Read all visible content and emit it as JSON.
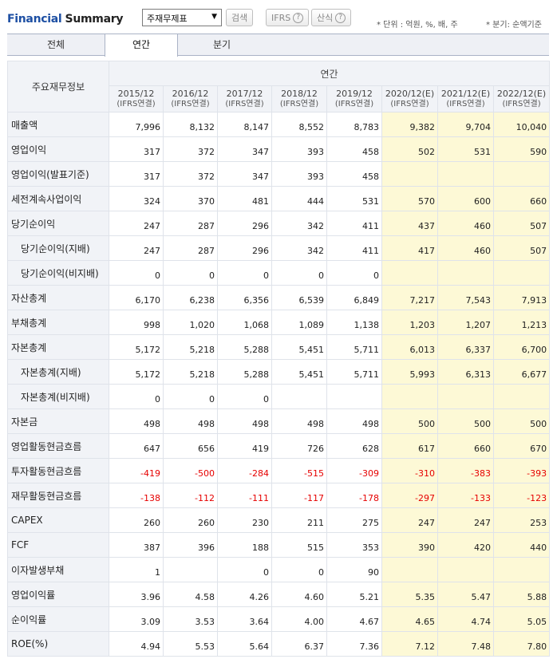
{
  "header": {
    "brand_part1": "Financial",
    "brand_part2": "Summary",
    "select_value": "주재무제표",
    "search_button": "검색",
    "ifrs_button": "IFRS",
    "formula_button": "산식",
    "help_glyph": "?",
    "unit_note": "* 단위 : 억원, %, 배, 주",
    "quarter_note": "* 분기: 순액기준"
  },
  "tabs": [
    "전체",
    "연간",
    "분기"
  ],
  "table": {
    "label_header": "주요재무정보",
    "period_header": "연간",
    "columns": [
      {
        "year": "2015/12",
        "basis": "(IFRS연결)",
        "estimate": false
      },
      {
        "year": "2016/12",
        "basis": "(IFRS연결)",
        "estimate": false
      },
      {
        "year": "2017/12",
        "basis": "(IFRS연결)",
        "estimate": false
      },
      {
        "year": "2018/12",
        "basis": "(IFRS연결)",
        "estimate": false
      },
      {
        "year": "2019/12",
        "basis": "(IFRS연결)",
        "estimate": false
      },
      {
        "year": "2020/12(E)",
        "basis": "(IFRS연결)",
        "estimate": true
      },
      {
        "year": "2021/12(E)",
        "basis": "(IFRS연결)",
        "estimate": true
      },
      {
        "year": "2022/12(E)",
        "basis": "(IFRS연결)",
        "estimate": true
      }
    ],
    "rows": [
      {
        "label": "매출액",
        "indent": false,
        "values": [
          "7,996",
          "8,132",
          "8,147",
          "8,552",
          "8,783",
          "9,382",
          "9,704",
          "10,040"
        ]
      },
      {
        "label": "영업이익",
        "indent": false,
        "values": [
          "317",
          "372",
          "347",
          "393",
          "458",
          "502",
          "531",
          "590"
        ]
      },
      {
        "label": "영업이익(발표기준)",
        "indent": false,
        "values": [
          "317",
          "372",
          "347",
          "393",
          "458",
          "",
          "",
          ""
        ]
      },
      {
        "label": "세전계속사업이익",
        "indent": false,
        "values": [
          "324",
          "370",
          "481",
          "444",
          "531",
          "570",
          "600",
          "660"
        ]
      },
      {
        "label": "당기순이익",
        "indent": false,
        "values": [
          "247",
          "287",
          "296",
          "342",
          "411",
          "437",
          "460",
          "507"
        ]
      },
      {
        "label": "당기순이익(지배)",
        "indent": true,
        "values": [
          "247",
          "287",
          "296",
          "342",
          "411",
          "417",
          "460",
          "507"
        ]
      },
      {
        "label": "당기순이익(비지배)",
        "indent": true,
        "values": [
          "0",
          "0",
          "0",
          "0",
          "0",
          "",
          "",
          ""
        ]
      },
      {
        "label": "자산총계",
        "indent": false,
        "values": [
          "6,170",
          "6,238",
          "6,356",
          "6,539",
          "6,849",
          "7,217",
          "7,543",
          "7,913"
        ]
      },
      {
        "label": "부채총계",
        "indent": false,
        "values": [
          "998",
          "1,020",
          "1,068",
          "1,089",
          "1,138",
          "1,203",
          "1,207",
          "1,213"
        ]
      },
      {
        "label": "자본총계",
        "indent": false,
        "values": [
          "5,172",
          "5,218",
          "5,288",
          "5,451",
          "5,711",
          "6,013",
          "6,337",
          "6,700"
        ]
      },
      {
        "label": "자본총계(지배)",
        "indent": true,
        "values": [
          "5,172",
          "5,218",
          "5,288",
          "5,451",
          "5,711",
          "5,993",
          "6,313",
          "6,677"
        ]
      },
      {
        "label": "자본총계(비지배)",
        "indent": true,
        "values": [
          "0",
          "0",
          "0",
          "",
          "",
          "",
          "",
          ""
        ]
      },
      {
        "label": "자본금",
        "indent": false,
        "values": [
          "498",
          "498",
          "498",
          "498",
          "498",
          "500",
          "500",
          "500"
        ]
      },
      {
        "label": "영업활동현금흐름",
        "indent": false,
        "values": [
          "647",
          "656",
          "419",
          "726",
          "628",
          "617",
          "660",
          "670"
        ]
      },
      {
        "label": "투자활동현금흐름",
        "indent": false,
        "values": [
          "-419",
          "-500",
          "-284",
          "-515",
          "-309",
          "-310",
          "-383",
          "-393"
        ]
      },
      {
        "label": "재무활동현금흐름",
        "indent": false,
        "values": [
          "-138",
          "-112",
          "-111",
          "-117",
          "-178",
          "-297",
          "-133",
          "-123"
        ]
      },
      {
        "label": "CAPEX",
        "indent": false,
        "values": [
          "260",
          "260",
          "230",
          "211",
          "275",
          "247",
          "247",
          "253"
        ]
      },
      {
        "label": "FCF",
        "indent": false,
        "values": [
          "387",
          "396",
          "188",
          "515",
          "353",
          "390",
          "420",
          "440"
        ]
      },
      {
        "label": "이자발생부채",
        "indent": false,
        "values": [
          "1",
          "",
          "0",
          "0",
          "90",
          "",
          "",
          ""
        ]
      },
      {
        "label": "영업이익률",
        "indent": false,
        "values": [
          "3.96",
          "4.58",
          "4.26",
          "4.60",
          "5.21",
          "5.35",
          "5.47",
          "5.88"
        ]
      },
      {
        "label": "순이익률",
        "indent": false,
        "values": [
          "3.09",
          "3.53",
          "3.64",
          "4.00",
          "4.67",
          "4.65",
          "4.74",
          "5.05"
        ]
      },
      {
        "label": "ROE(%)",
        "indent": false,
        "values": [
          "4.94",
          "5.53",
          "5.64",
          "6.37",
          "7.36",
          "7.12",
          "7.48",
          "7.80"
        ]
      }
    ]
  },
  "colors": {
    "brand_blue": "#1d4fa3",
    "header_bg": "#f1f3f7",
    "estimate_bg": "#fdf9d6",
    "negative": "#e60000"
  }
}
